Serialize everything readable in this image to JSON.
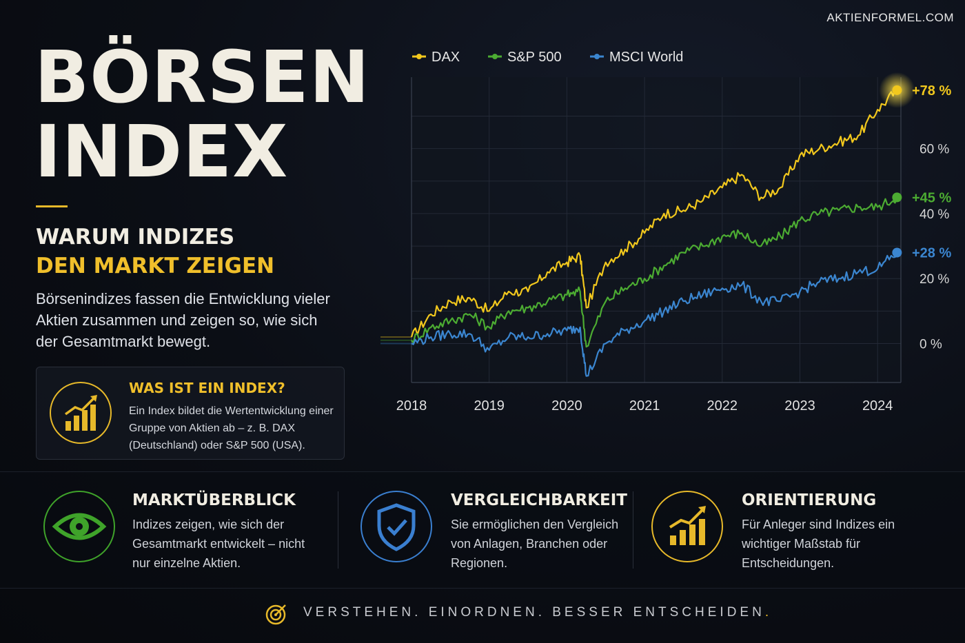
{
  "brand": "AKTIENFORMEL.COM",
  "header": {
    "title_line1": "BÖRSEN",
    "title_line2": "INDEX",
    "subtitle_line1": "WARUM INDIZES",
    "subtitle_line2": "DEN MARKT ZEIGEN",
    "intro": "Börsenindizes fassen die Entwicklung vieler Aktien zusammen und zeigen so, wie sich der Gesamtmarkt bewegt."
  },
  "info_card": {
    "title": "WAS IST EIN INDEX?",
    "text": "Ein Index bildet die Wertentwicklung einer Gruppe von Aktien ab – z. B. DAX (Deutschland) oder S&P 500 (USA).",
    "icon": "growth-chart-icon"
  },
  "features": [
    {
      "title": "MARKTÜBERBLICK",
      "text": "Indizes zeigen, wie sich der Gesamtmarkt entwickelt – nicht nur einzelne Aktien.",
      "icon": "eye-icon",
      "color": "#3fa32a"
    },
    {
      "title": "VERGLEICHBARKEIT",
      "text": "Sie ermöglichen den Vergleich von Anlagen, Branchen oder Regionen.",
      "icon": "shield-check-icon",
      "color": "#3a7fd0"
    },
    {
      "title": "ORIENTIERUNG",
      "text": "Für Anleger sind Indizes ein wichtiger Maßstab für Entscheidungen.",
      "icon": "growth-chart-icon",
      "color": "#e7b92a"
    }
  ],
  "tagline": "VERSTEHEN. EINORDNEN. BESSER ENTSCHEIDEN",
  "tagline_end": ".",
  "chart_data": {
    "type": "line",
    "x": [
      2018,
      2018.25,
      2018.5,
      2018.75,
      2019,
      2019.25,
      2019.5,
      2019.75,
      2020,
      2020.17,
      2020.25,
      2020.5,
      2020.75,
      2021,
      2021.25,
      2021.5,
      2021.75,
      2022,
      2022.25,
      2022.5,
      2022.75,
      2023,
      2023.25,
      2023.5,
      2023.75,
      2024,
      2024.25
    ],
    "series": [
      {
        "name": "DAX",
        "color": "#f2c81d",
        "end_label": "+78 %",
        "values": [
          2,
          9,
          13,
          14,
          10,
          16,
          16,
          22,
          25,
          27,
          11,
          25,
          29,
          34,
          40,
          41,
          44,
          48,
          52,
          45,
          48,
          58,
          60,
          62,
          64,
          72,
          78
        ]
      },
      {
        "name": "S&P 500",
        "color": "#4cac32",
        "end_label": "+45 %",
        "values": [
          1,
          5,
          7,
          9,
          5,
          10,
          11,
          13,
          15,
          16,
          -1,
          13,
          17,
          20,
          24,
          28,
          30,
          33,
          34,
          30,
          33,
          38,
          40,
          41,
          42,
          42,
          45
        ]
      },
      {
        "name": "MSCI World",
        "color": "#3b86d0",
        "end_label": "+28 %",
        "values": [
          0,
          2,
          3,
          3,
          -2,
          2,
          2,
          3,
          4,
          5,
          -10,
          0,
          4,
          7,
          10,
          13,
          15,
          17,
          18,
          13,
          13,
          16,
          19,
          20,
          22,
          23,
          28
        ]
      }
    ],
    "x_ticks": [
      "2018",
      "2019",
      "2020",
      "2021",
      "2022",
      "2023",
      "2024"
    ],
    "y_ticks": [
      "0 %",
      "20 %",
      "40 %",
      "60 %"
    ],
    "y_tick_values": [
      0,
      20,
      40,
      60
    ],
    "ylim": [
      -12,
      82
    ],
    "xlim": [
      2018,
      2024.3
    ],
    "legend_position": "top",
    "grid": true
  }
}
